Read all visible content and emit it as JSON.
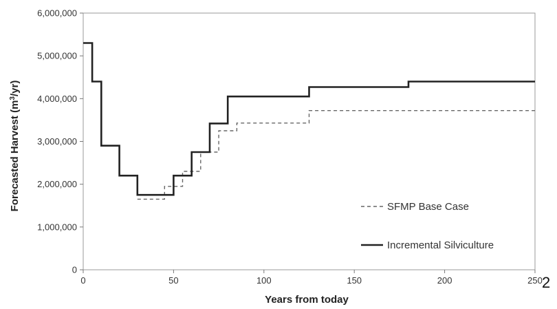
{
  "chart_data": {
    "type": "line",
    "title": "",
    "xlabel": "Years from today",
    "ylabel": "Forecasted Harvest (m³/yr)",
    "xlim": [
      0,
      250
    ],
    "ylim": [
      0,
      6000000
    ],
    "x_ticks": [
      0,
      50,
      100,
      150,
      200,
      250
    ],
    "x_tick_labels": [
      "0",
      "50",
      "100",
      "150",
      "200",
      "250"
    ],
    "y_ticks": [
      0,
      1000000,
      2000000,
      3000000,
      4000000,
      5000000,
      6000000
    ],
    "y_tick_labels": [
      "0",
      "1,000,000",
      "2,000,000",
      "3,000,000",
      "4,000,000",
      "5,000,000",
      "6,000,000"
    ],
    "grid": false,
    "legend_position": "bottom-right",
    "stray_label": "2",
    "series": [
      {
        "name": "SFMP Base Case",
        "style": "dashed",
        "color": "#666666",
        "x": [
          30,
          45,
          45,
          55,
          55,
          65,
          65,
          75,
          75,
          85,
          85,
          125,
          125,
          250
        ],
        "y": [
          1650000,
          1650000,
          1950000,
          1950000,
          2300000,
          2300000,
          2750000,
          2750000,
          3250000,
          3250000,
          3430000,
          3430000,
          3720000,
          3720000
        ]
      },
      {
        "name": "Incremental Silviculture",
        "style": "solid",
        "color": "#222222",
        "x": [
          0,
          5,
          5,
          10,
          10,
          20,
          20,
          30,
          30,
          50,
          50,
          60,
          60,
          70,
          70,
          80,
          80,
          125,
          125,
          180,
          180,
          250
        ],
        "y": [
          5300000,
          5300000,
          4400000,
          4400000,
          2900000,
          2900000,
          2200000,
          2200000,
          1750000,
          1750000,
          2200000,
          2200000,
          2750000,
          2750000,
          3420000,
          3420000,
          4050000,
          4050000,
          4270000,
          4270000,
          4400000,
          4400000
        ]
      }
    ]
  }
}
